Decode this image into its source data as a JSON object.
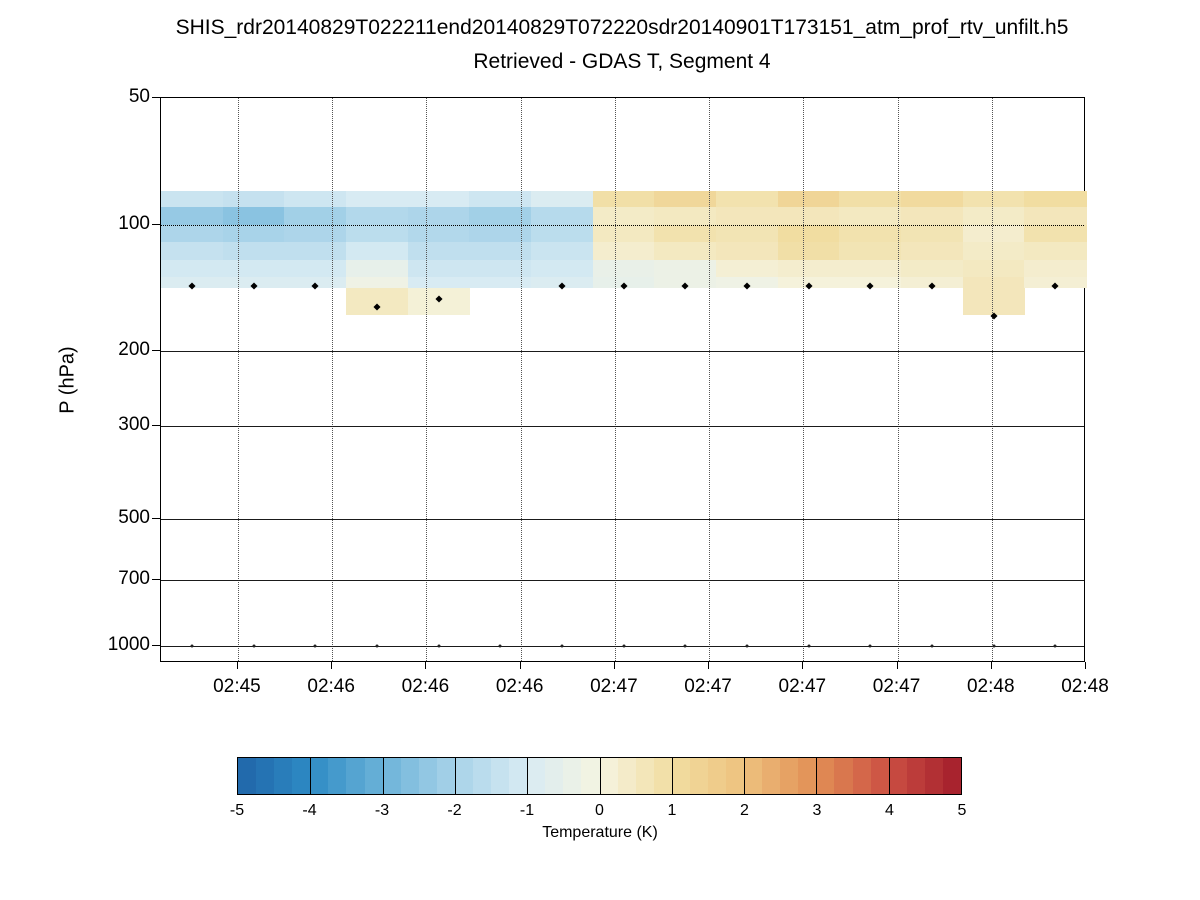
{
  "chart_data": {
    "type": "heatmap",
    "title": "SHIS_rdr20140829T022211end20140829T072220sdr20140901T173151_atm_prof_rtv_unfilt.h5",
    "subtitle": "Retrieved - GDAS T, Segment 4",
    "xlabel": "",
    "ylabel": "P (hPa)",
    "x_tick_labels": [
      "02:45",
      "02:46",
      "02:46",
      "02:46",
      "02:47",
      "02:47",
      "02:47",
      "02:47",
      "02:48",
      "02:48"
    ],
    "y_scale": "log",
    "y_ticks": [
      50,
      100,
      200,
      300,
      500,
      700,
      1000
    ],
    "y_range_hpa": [
      50,
      1100
    ],
    "grid": {
      "vertical_style": "dotted",
      "horizontal_solid_at_hpa": [
        200,
        300,
        500,
        700,
        1000
      ],
      "horizontal_dotted_at_hpa": [
        100
      ]
    },
    "heatmap": {
      "n_time_columns": 15,
      "pressure_row_edges_hpa": [
        83,
        91,
        100,
        110,
        121,
        133,
        141,
        163
      ],
      "values_K": [
        [
          -1.3,
          -1.4,
          -1.2,
          -1.0,
          -1.0,
          -1.2,
          -0.9,
          0.9,
          1.2,
          0.8,
          1.3,
          0.9,
          1.1,
          0.8,
          1.0
        ],
        [
          -2.3,
          -2.5,
          -2.1,
          -1.8,
          -1.9,
          -2.1,
          -1.7,
          0.4,
          0.5,
          0.6,
          0.6,
          0.5,
          0.6,
          0.4,
          0.6
        ],
        [
          -1.9,
          -2.0,
          -1.9,
          -1.6,
          -1.8,
          -1.9,
          -1.6,
          0.5,
          0.8,
          0.7,
          1.0,
          0.8,
          0.7,
          0.3,
          0.8
        ],
        [
          -1.4,
          -1.5,
          -1.5,
          -1.1,
          -1.5,
          -1.5,
          -1.3,
          0.3,
          0.5,
          0.6,
          0.9,
          0.7,
          0.6,
          0.4,
          0.5
        ],
        [
          -1.1,
          -1.1,
          -1.1,
          -0.5,
          -1.2,
          -1.2,
          -1.1,
          -0.4,
          -0.3,
          0.2,
          0.3,
          0.3,
          0.4,
          0.5,
          0.3
        ],
        [
          -0.9,
          -0.9,
          -0.9,
          -0.2,
          -1.0,
          -1.0,
          -0.9,
          -0.5,
          -0.3,
          -0.2,
          0.1,
          0.1,
          0.2,
          0.6,
          0.2
        ],
        [
          null,
          null,
          null,
          0.5,
          0.15,
          null,
          null,
          null,
          null,
          null,
          null,
          null,
          null,
          0.6,
          null
        ]
      ]
    },
    "markers": {
      "level_marker_pressures_hpa": [
        140,
        140,
        140,
        157,
        150,
        null,
        140,
        140,
        140,
        140,
        140,
        140,
        140,
        165,
        140
      ],
      "surface_marker_pressure_hpa": 1000
    },
    "colorbar": {
      "label": "Temperature (K)",
      "range": [
        -5,
        5
      ],
      "tick_labels": [
        "-5",
        "-4",
        "-3",
        "-2",
        "-1",
        "0",
        "1",
        "2",
        "3",
        "4",
        "5"
      ],
      "stops": [
        {
          "v": -5,
          "c": "#2065a8"
        },
        {
          "v": -4,
          "c": "#2e8bc4"
        },
        {
          "v": -3,
          "c": "#6cb3d9"
        },
        {
          "v": -2,
          "c": "#a8d3e9"
        },
        {
          "v": -1,
          "c": "#d8ebf3"
        },
        {
          "v": 0,
          "c": "#f5f4e1"
        },
        {
          "v": 1,
          "c": "#f1dda1"
        },
        {
          "v": 2,
          "c": "#edc17e"
        },
        {
          "v": 3,
          "c": "#e28f55"
        },
        {
          "v": 4,
          "c": "#cb4f43"
        },
        {
          "v": 5,
          "c": "#a31d2b"
        }
      ]
    }
  }
}
